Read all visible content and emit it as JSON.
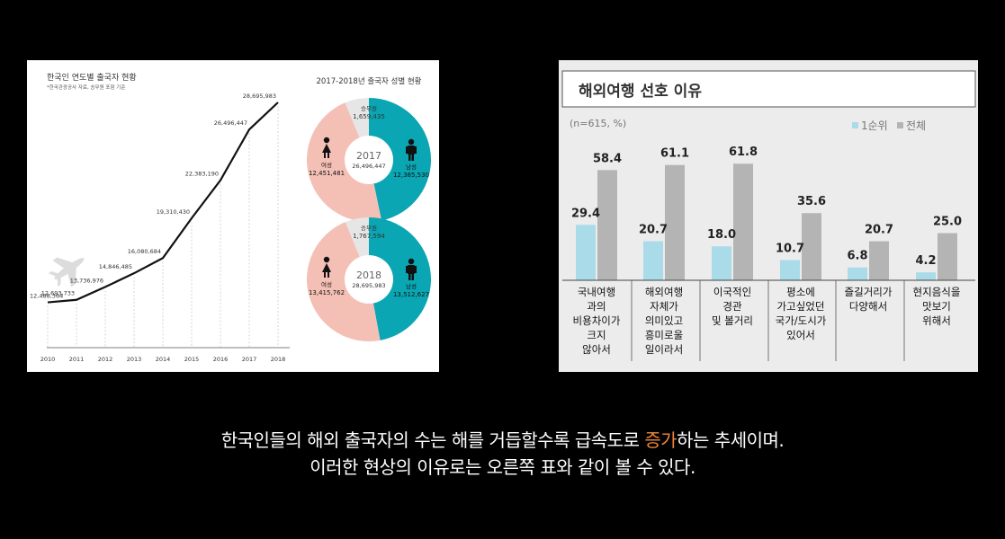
{
  "caption": {
    "line1_before": "한국인들의 해외 출국자의 수는 해를 거듭할수록 급속도로 ",
    "line1_highlight": "증가",
    "line1_after": "하는 추세이며.",
    "line2": "이러한 현상의 이유로는 오른쪽 표와 같이 볼 수 있다."
  },
  "colors": {
    "highlight": "#f0883a",
    "male": "#0aa6b3",
    "female": "#f4c0b6",
    "crew": "#e6e6e6",
    "rank1": "#a9dce8",
    "total": "#b4b4b4"
  },
  "icons": {
    "plane": "airplane-icon",
    "male": "male-person-icon",
    "female": "female-person-icon"
  },
  "chart_data": [
    {
      "type": "line",
      "title": "한국인 연도별 출국자 현황",
      "subtitle": "*한국관광공사 자료, 승무원 포함 기준",
      "x": [
        "2010",
        "2011",
        "2012",
        "2013",
        "2014",
        "2015",
        "2016",
        "2017",
        "2018"
      ],
      "values": [
        12488364,
        12693733,
        13736976,
        14846485,
        16080684,
        19310430,
        22383190,
        26496447,
        28695983
      ],
      "labels": [
        "12,488,364",
        "12,693,733",
        "13,736,976",
        "14,846,485",
        "16,080,684",
        "19,310,430",
        "22,383,190",
        "26,496,447",
        "28,695,983"
      ]
    },
    {
      "type": "pie",
      "title": "2017-2018년 출국자 성별 현황",
      "pies": [
        {
          "year": "2017",
          "total": "26,496,447",
          "slices": [
            {
              "name": "남성",
              "value": 12385530,
              "label": "12,385,530"
            },
            {
              "name": "여성",
              "value": 12451481,
              "label": "12,451,481"
            },
            {
              "name": "승무원",
              "value": 1659435,
              "label": "1,659,435"
            }
          ]
        },
        {
          "year": "2018",
          "total": "28,695,983",
          "slices": [
            {
              "name": "남성",
              "value": 13512627,
              "label": "13,512,627"
            },
            {
              "name": "여성",
              "value": 13415762,
              "label": "13,415,762"
            },
            {
              "name": "승무원",
              "value": 1767594,
              "label": "1,767,594"
            }
          ]
        }
      ]
    },
    {
      "type": "bar",
      "title": "해외여행 선호 이유",
      "subtitle": "(n=615, %)",
      "categories": [
        [
          "국내여행",
          "과의",
          "비용차이가",
          "크지",
          "않아서"
        ],
        [
          "해외여행",
          "자체가",
          "의미있고",
          "흥미로울",
          "일이라서"
        ],
        [
          "이국적인",
          "경관",
          "및 볼거리"
        ],
        [
          "평소에",
          "가고싶었던",
          "국가/도시가",
          "있어서"
        ],
        [
          "즐길거리가",
          "다양해서"
        ],
        [
          "현지음식을",
          "맛보기",
          "위해서"
        ]
      ],
      "series": [
        {
          "name": "1순위",
          "values": [
            29.4,
            20.7,
            18.0,
            10.7,
            6.8,
            4.2
          ],
          "labels": [
            "29.4",
            "20.7",
            "18.0",
            "10.7",
            "6.8",
            "4.2"
          ]
        },
        {
          "name": "전체",
          "values": [
            58.4,
            61.1,
            61.8,
            35.6,
            20.7,
            25.0
          ],
          "labels": [
            "58.4",
            "61.1",
            "61.8",
            "35.6",
            "20.7",
            "25.0"
          ]
        }
      ],
      "ylim": [
        0,
        80
      ],
      "legend": "top-right"
    }
  ]
}
